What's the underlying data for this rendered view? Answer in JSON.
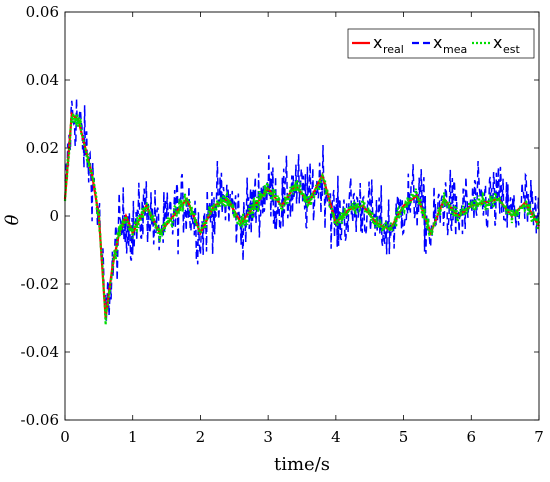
{
  "chart_data": {
    "type": "line",
    "xlabel": "time/s",
    "ylabel": "θ",
    "xlim": [
      0,
      7
    ],
    "ylim": [
      -0.06,
      0.06
    ],
    "xticks": [
      "0",
      "1",
      "2",
      "3",
      "4",
      "5",
      "6",
      "7"
    ],
    "yticks": [
      "0.06",
      "0.04",
      "0.02",
      "0",
      "-0.02",
      "-0.04",
      "-0.06"
    ],
    "grid": false,
    "legend_position": "top-right",
    "series": [
      {
        "name": "x_real",
        "label_main": "x",
        "label_sub": "real",
        "color": "#ff0000",
        "style": "solid",
        "x": [
          0,
          0.1,
          0.2,
          0.3,
          0.4,
          0.5,
          0.6,
          0.7,
          0.8,
          0.9,
          1.0,
          1.2,
          1.4,
          1.6,
          1.8,
          2.0,
          2.2,
          2.4,
          2.6,
          2.8,
          3.0,
          3.2,
          3.4,
          3.6,
          3.8,
          4.0,
          4.2,
          4.4,
          4.6,
          4.8,
          5.0,
          5.2,
          5.4,
          5.6,
          5.8,
          6.0,
          6.2,
          6.4,
          6.6,
          6.8,
          7.0
        ],
        "y": [
          0.005,
          0.03,
          0.028,
          0.02,
          0.012,
          0.0,
          -0.03,
          -0.015,
          -0.005,
          0.0,
          -0.005,
          0.003,
          -0.005,
          0.0,
          0.005,
          -0.005,
          0.003,
          0.005,
          -0.002,
          0.003,
          0.008,
          0.003,
          0.009,
          0.004,
          0.012,
          -0.002,
          0.002,
          0.003,
          -0.002,
          -0.004,
          0.003,
          0.006,
          -0.005,
          0.005,
          0.0,
          0.003,
          0.004,
          0.005,
          0.0,
          0.004,
          -0.003
        ]
      },
      {
        "name": "x_mea",
        "label_main": "x",
        "label_sub": "mea",
        "color": "#0000ff",
        "style": "dashed",
        "x": [
          0,
          0.1,
          0.2,
          0.3,
          0.4,
          0.5,
          0.6,
          0.7,
          0.8,
          0.9,
          1.0,
          1.2,
          1.4,
          1.6,
          1.8,
          2.0,
          2.2,
          2.4,
          2.6,
          2.8,
          3.0,
          3.2,
          3.4,
          3.6,
          3.8,
          4.0,
          4.2,
          4.4,
          4.6,
          4.8,
          5.0,
          5.2,
          5.4,
          5.6,
          5.8,
          6.0,
          6.2,
          6.4,
          6.6,
          6.8,
          7.0
        ],
        "y_center": [
          0.005,
          0.03,
          0.028,
          0.02,
          0.012,
          0.0,
          -0.03,
          -0.015,
          -0.005,
          0.0,
          -0.005,
          0.003,
          -0.005,
          0.0,
          0.005,
          -0.005,
          0.003,
          0.005,
          -0.002,
          0.003,
          0.008,
          0.003,
          0.009,
          0.004,
          0.012,
          -0.002,
          0.002,
          0.003,
          -0.002,
          -0.004,
          0.003,
          0.006,
          -0.005,
          0.005,
          0.0,
          0.003,
          0.004,
          0.005,
          0.0,
          0.004,
          -0.003
        ],
        "noise_amplitude": 0.017
      },
      {
        "name": "x_est",
        "label_main": "x",
        "label_sub": "est",
        "color": "#00dd00",
        "style": "dotted",
        "x": [
          0,
          0.1,
          0.2,
          0.3,
          0.4,
          0.5,
          0.6,
          0.7,
          0.8,
          0.9,
          1.0,
          1.2,
          1.4,
          1.6,
          1.8,
          2.0,
          2.2,
          2.4,
          2.6,
          2.8,
          3.0,
          3.2,
          3.4,
          3.6,
          3.8,
          4.0,
          4.2,
          4.4,
          4.6,
          4.8,
          5.0,
          5.2,
          5.4,
          5.6,
          5.8,
          6.0,
          6.2,
          6.4,
          6.6,
          6.8,
          7.0
        ],
        "y_center": [
          0.005,
          0.03,
          0.028,
          0.02,
          0.012,
          0.0,
          -0.03,
          -0.015,
          -0.005,
          0.0,
          -0.005,
          0.003,
          -0.005,
          0.0,
          0.005,
          -0.005,
          0.003,
          0.005,
          -0.002,
          0.003,
          0.008,
          0.003,
          0.009,
          0.004,
          0.012,
          -0.002,
          0.002,
          0.003,
          -0.002,
          -0.004,
          0.003,
          0.006,
          -0.005,
          0.005,
          0.0,
          0.003,
          0.004,
          0.005,
          0.0,
          0.004,
          -0.003
        ],
        "noise_amplitude": 0.004
      }
    ]
  }
}
